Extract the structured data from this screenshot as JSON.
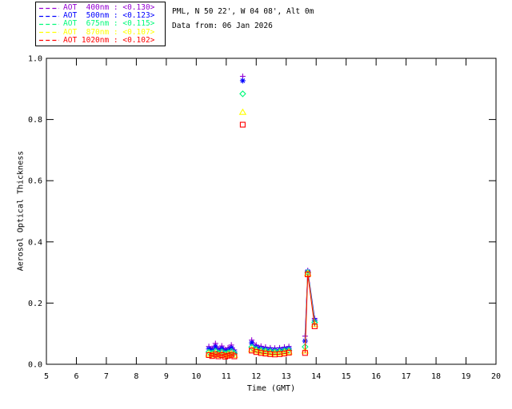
{
  "header": {
    "location_line": "PML, N 50 22', W 04 08', Alt 0m",
    "date_line": "Data from: 06 Jan 2026"
  },
  "legend": {
    "items": [
      {
        "label": "AOT  400nm : <0.130>",
        "color": "#9400D3",
        "marker": "plus"
      },
      {
        "label": "AOT  500nm : <0.123>",
        "color": "#0000FF",
        "marker": "asterisk"
      },
      {
        "label": "AOT  675nm : <0.115>",
        "color": "#00FA7A",
        "marker": "diamond"
      },
      {
        "label": "AOT  870nm : <0.107>",
        "color": "#FFFF00",
        "marker": "triangle"
      },
      {
        "label": "AOT 1020nm : <0.102>",
        "color": "#FF0000",
        "marker": "square"
      }
    ]
  },
  "chart_data": {
    "type": "scatter",
    "title": "",
    "xlabel": "Time (GMT)",
    "ylabel": "Aerosol Optical Thickness",
    "xlim": [
      5,
      20
    ],
    "ylim": [
      0.0,
      1.0
    ],
    "xticks": [
      5,
      6,
      7,
      8,
      9,
      10,
      11,
      12,
      13,
      14,
      15,
      16,
      17,
      18,
      19,
      20
    ],
    "yticks": [
      {
        "v": 0.0,
        "label": "0.0"
      },
      {
        "v": 0.2,
        "label": "0.2"
      },
      {
        "v": 0.4,
        "label": "0.4"
      },
      {
        "v": 0.6,
        "label": "0.6"
      },
      {
        "v": 0.8,
        "label": "0.8"
      },
      {
        "v": 1.0,
        "label": "1.0"
      }
    ],
    "grid": false,
    "legend_position": "top-left",
    "axis_color": "#000000",
    "series": [
      {
        "name": "AOT 400nm",
        "mean_label": "<0.130>",
        "color": "#9400D3",
        "marker": "plus",
        "segments": [
          {
            "times": [
              10.42,
              10.53,
              10.64,
              10.74,
              10.85,
              10.96,
              11.06,
              11.17,
              11.27
            ],
            "values": [
              0.058,
              0.052,
              0.068,
              0.05,
              0.06,
              0.048,
              0.054,
              0.063,
              0.047
            ]
          },
          {
            "times": [
              11.85,
              12.0,
              12.16,
              12.31,
              12.47,
              12.62,
              12.78,
              12.94,
              13.09
            ],
            "values": [
              0.079,
              0.063,
              0.059,
              0.056,
              0.054,
              0.053,
              0.054,
              0.056,
              0.058
            ]
          },
          {
            "times": [
              13.63,
              13.72,
              13.95
            ],
            "values": [
              0.092,
              0.306,
              0.15
            ]
          }
        ],
        "isolated_points": [
          {
            "time": 11.55,
            "value": 0.941
          }
        ]
      },
      {
        "name": "AOT 500nm",
        "mean_label": "<0.123>",
        "color": "#0000FF",
        "marker": "asterisk",
        "segments": [
          {
            "times": [
              10.42,
              10.53,
              10.64,
              10.74,
              10.85,
              10.96,
              11.06,
              11.17,
              11.27
            ],
            "values": [
              0.05,
              0.045,
              0.057,
              0.043,
              0.051,
              0.042,
              0.046,
              0.053,
              0.041
            ]
          },
          {
            "times": [
              11.85,
              12.0,
              12.16,
              12.31,
              12.47,
              12.62,
              12.78,
              12.94,
              13.09
            ],
            "values": [
              0.07,
              0.056,
              0.052,
              0.05,
              0.048,
              0.047,
              0.048,
              0.05,
              0.052
            ]
          },
          {
            "times": [
              13.63,
              13.72,
              13.95
            ],
            "values": [
              0.076,
              0.303,
              0.144
            ]
          }
        ],
        "isolated_points": [
          {
            "time": 11.55,
            "value": 0.927
          }
        ]
      },
      {
        "name": "AOT 675nm",
        "mean_label": "<0.115>",
        "color": "#00FA7A",
        "marker": "diamond",
        "segments": [
          {
            "times": [
              10.42,
              10.53,
              10.64,
              10.74,
              10.85,
              10.96,
              11.06,
              11.17,
              11.27
            ],
            "values": [
              0.04,
              0.037,
              0.043,
              0.036,
              0.041,
              0.035,
              0.038,
              0.042,
              0.036
            ]
          },
          {
            "times": [
              11.85,
              12.0,
              12.16,
              12.31,
              12.47,
              12.62,
              12.78,
              12.94,
              13.09
            ],
            "values": [
              0.056,
              0.049,
              0.046,
              0.044,
              0.042,
              0.041,
              0.042,
              0.044,
              0.046
            ]
          },
          {
            "times": [
              13.63,
              13.72,
              13.95
            ],
            "values": [
              0.057,
              0.3,
              0.137
            ]
          }
        ],
        "isolated_points": [
          {
            "time": 11.55,
            "value": 0.884
          }
        ]
      },
      {
        "name": "AOT 870nm",
        "mean_label": "<0.107>",
        "color": "#FFFF00",
        "marker": "triangle",
        "segments": [
          {
            "times": [
              10.42,
              10.53,
              10.64,
              10.74,
              10.85,
              10.96,
              11.06,
              11.17,
              11.27
            ],
            "values": [
              0.034,
              0.031,
              0.036,
              0.03,
              0.034,
              0.029,
              0.032,
              0.035,
              0.03
            ]
          },
          {
            "times": [
              11.85,
              12.0,
              12.16,
              12.31,
              12.47,
              12.62,
              12.78,
              12.94,
              13.09
            ],
            "values": [
              0.049,
              0.044,
              0.041,
              0.039,
              0.037,
              0.036,
              0.037,
              0.039,
              0.041
            ]
          },
          {
            "times": [
              13.63,
              13.72,
              13.95
            ],
            "values": [
              0.044,
              0.297,
              0.13
            ]
          }
        ],
        "isolated_points": [
          {
            "time": 11.55,
            "value": 0.824
          }
        ]
      },
      {
        "name": "AOT 1020nm",
        "mean_label": "<0.102>",
        "color": "#FF0000",
        "marker": "square",
        "segments": [
          {
            "times": [
              10.42,
              10.53,
              10.64,
              10.74,
              10.85,
              10.96,
              11.06,
              11.17,
              11.27
            ],
            "values": [
              0.03,
              0.027,
              0.032,
              0.026,
              0.03,
              0.025,
              0.028,
              0.031,
              0.026
            ]
          },
          {
            "times": [
              11.85,
              12.0,
              12.16,
              12.31,
              12.47,
              12.62,
              12.78,
              12.94,
              13.09
            ],
            "values": [
              0.045,
              0.04,
              0.037,
              0.035,
              0.033,
              0.032,
              0.033,
              0.035,
              0.038
            ]
          },
          {
            "times": [
              13.63,
              13.72,
              13.95
            ],
            "values": [
              0.037,
              0.294,
              0.124
            ]
          }
        ],
        "isolated_points": [
          {
            "time": 11.55,
            "value": 0.783
          }
        ]
      }
    ]
  }
}
